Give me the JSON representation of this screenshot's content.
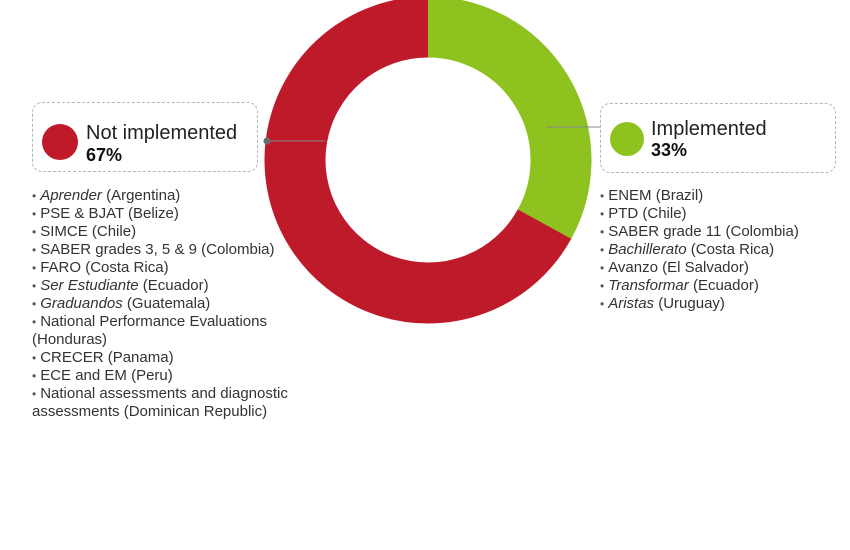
{
  "chart_data": {
    "type": "pie",
    "categories": [
      "Not implemented",
      "Implemented"
    ],
    "values": [
      67,
      33
    ],
    "colors": {
      "not_implemented": "#be1a2a",
      "implemented": "#8dc21f"
    }
  },
  "legend": {
    "not_implemented": {
      "label": "Not implemented",
      "percent": "67%"
    },
    "implemented": {
      "label": "Implemented",
      "percent": "33%"
    }
  },
  "not_implemented_list": [
    {
      "name": "Aprender",
      "country": " (Argentina)",
      "italic": true
    },
    {
      "name": "PSE & BJAT",
      "country": " (Belize)",
      "italic": false
    },
    {
      "name": "SIMCE",
      "country": " (Chile)",
      "italic": false
    },
    {
      "name": "SABER grades 3, 5 & 9",
      "country": " (Colombia)",
      "italic": false
    },
    {
      "name": "FARO",
      "country": " (Costa Rica)",
      "italic": false
    },
    {
      "name": "Ser Estudiante",
      "country": " (Ecuador)",
      "italic": true
    },
    {
      "name": "Graduandos",
      "country": " (Guatemala)",
      "italic": true
    },
    {
      "name": "National Performance Evaluations",
      "country": " (Honduras)",
      "italic": false
    },
    {
      "name": "CRECER",
      "country": " (Panama)",
      "italic": false
    },
    {
      "name": "ECE and EM",
      "country": " (Peru)",
      "italic": false
    },
    {
      "name": "National assessments and diagnostic assessments",
      "country": " (Dominican Republic)",
      "italic": false
    }
  ],
  "implemented_list": [
    {
      "name": "ENEM",
      "country": " (Brazil)",
      "italic": false
    },
    {
      "name": "PTD",
      "country": " (Chile)",
      "italic": false
    },
    {
      "name": "SABER grade 11",
      "country": " (Colombia)",
      "italic": false
    },
    {
      "name": "Bachillerato",
      "country": " (Costa Rica)",
      "italic": true
    },
    {
      "name": "Avanzo",
      "country": " (El Salvador)",
      "italic": false
    },
    {
      "name": "Transformar",
      "country": " (Ecuador)",
      "italic": true
    },
    {
      "name": "Aristas",
      "country": " (Uruguay)",
      "italic": true
    }
  ]
}
